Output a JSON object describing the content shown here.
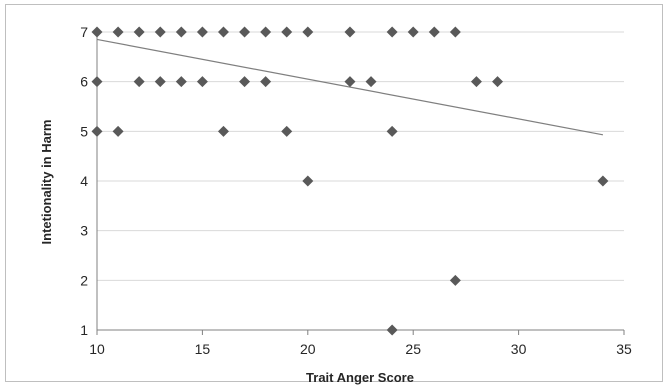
{
  "chart_data": {
    "type": "scatter",
    "xlabel": "Trait Anger Score",
    "ylabel": "Intetionality in Harm",
    "xlim": [
      10,
      35
    ],
    "ylim": [
      1,
      7
    ],
    "xticks": [
      10,
      15,
      20,
      25,
      30,
      35
    ],
    "yticks": [
      1,
      2,
      3,
      4,
      5,
      6,
      7
    ],
    "grid": "horizontal",
    "legend": "none",
    "colors": {
      "marker": "#595959",
      "trendline": "#7f7f7f",
      "gridline": "#d9d9d9",
      "axis": "#808080"
    },
    "series": [
      {
        "marker": "diamond",
        "points": [
          [
            10,
            7
          ],
          [
            11,
            7
          ],
          [
            12,
            7
          ],
          [
            13,
            7
          ],
          [
            14,
            7
          ],
          [
            15,
            7
          ],
          [
            16,
            7
          ],
          [
            17,
            7
          ],
          [
            18,
            7
          ],
          [
            19,
            7
          ],
          [
            20,
            7
          ],
          [
            22,
            7
          ],
          [
            24,
            7
          ],
          [
            25,
            7
          ],
          [
            26,
            7
          ],
          [
            27,
            7
          ],
          [
            10,
            6
          ],
          [
            12,
            6
          ],
          [
            13,
            6
          ],
          [
            14,
            6
          ],
          [
            15,
            6
          ],
          [
            17,
            6
          ],
          [
            18,
            6
          ],
          [
            22,
            6
          ],
          [
            23,
            6
          ],
          [
            28,
            6
          ],
          [
            29,
            6
          ],
          [
            10,
            5
          ],
          [
            11,
            5
          ],
          [
            16,
            5
          ],
          [
            19,
            5
          ],
          [
            24,
            5
          ],
          [
            20,
            4
          ],
          [
            34,
            4
          ],
          [
            27,
            2
          ],
          [
            24,
            1
          ]
        ]
      }
    ],
    "trendline": {
      "type": "linear",
      "from": [
        10,
        6.85
      ],
      "to": [
        34,
        4.93
      ]
    }
  }
}
